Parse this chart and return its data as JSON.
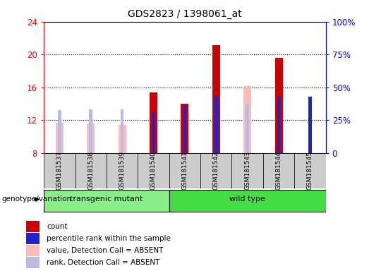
{
  "title": "GDS2823 / 1398061_at",
  "samples": [
    "GSM181537",
    "GSM181538",
    "GSM181539",
    "GSM181540",
    "GSM181541",
    "GSM181542",
    "GSM181543",
    "GSM181544",
    "GSM181545"
  ],
  "count_values": [
    null,
    null,
    null,
    15.4,
    14.0,
    21.1,
    null,
    19.6,
    null
  ],
  "rank_values": [
    null,
    null,
    null,
    13.0,
    13.8,
    14.9,
    null,
    14.9,
    14.9
  ],
  "absent_value": [
    11.7,
    11.6,
    11.4,
    null,
    null,
    null,
    16.2,
    null,
    null
  ],
  "absent_rank": [
    13.2,
    13.3,
    13.3,
    null,
    null,
    null,
    13.9,
    null,
    null
  ],
  "ylim": [
    8,
    24
  ],
  "yticks": [
    8,
    12,
    16,
    20,
    24
  ],
  "right_ytick_pct": [
    0,
    25,
    50,
    75,
    100
  ],
  "count_color": "#cc0000",
  "rank_color": "#2222cc",
  "absent_value_color": "#ffbbbb",
  "absent_rank_color": "#bbbbdd",
  "group_colors": {
    "transgenic mutant": "#88ee88",
    "wild type": "#44dd44"
  },
  "transgenic_indices": [
    0,
    1,
    2,
    3
  ],
  "wildtype_indices": [
    4,
    5,
    6,
    7,
    8
  ],
  "legend_items": [
    {
      "label": "count",
      "color": "#cc0000"
    },
    {
      "label": "percentile rank within the sample",
      "color": "#2222cc"
    },
    {
      "label": "value, Detection Call = ABSENT",
      "color": "#ffbbbb"
    },
    {
      "label": "rank, Detection Call = ABSENT",
      "color": "#bbbbdd"
    }
  ],
  "genotype_label": "genotype/variation",
  "bg_color": "#cccccc",
  "plot_bg": "#ffffff"
}
